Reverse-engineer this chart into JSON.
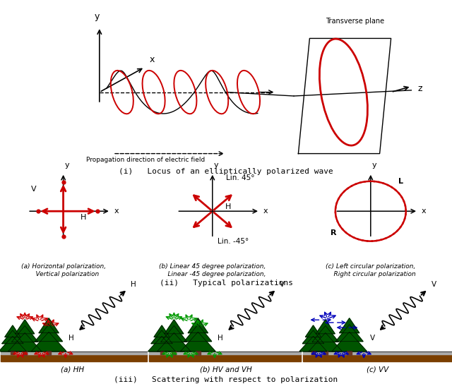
{
  "bg_color": "#ffffff",
  "section_i_label": "(i)   Locus of an elliptically polarized wave",
  "section_ii_label": "(ii)   Typical polarizations",
  "section_iii_label": "(iii)   Scattering with respect to polarization",
  "sub_a1_line1": "(a) Horizontal polarization,",
  "sub_a1_line2": "    Vertical polarization",
  "sub_b1_line1": "(b) Linear 45 degree polarization,",
  "sub_b1_line2": "    Linear -45 degree polarization,",
  "sub_c1_line1": "(c) Left circular polarization,",
  "sub_c1_line2": "    Right circular polarization",
  "sub_a2_label": "(a) HH",
  "sub_b2_label": "(b) HV and VH",
  "sub_c2_label": "(c) VV",
  "red": "#cc0000",
  "green": "#009900",
  "blue": "#0000bb",
  "dark_green": "#005500",
  "brown": "#7B3F00",
  "gray": "#888888",
  "black": "#000000"
}
